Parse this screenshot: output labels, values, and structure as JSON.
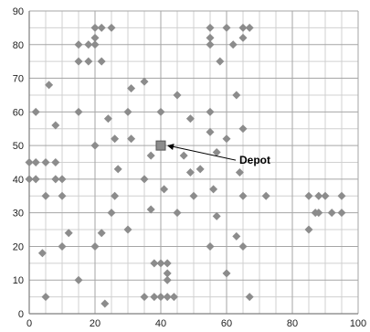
{
  "chart_data": {
    "type": "scatter",
    "title": "",
    "xlabel": "",
    "ylabel": "",
    "xlim": [
      0,
      100
    ],
    "ylim": [
      0,
      90
    ],
    "x_ticks": [
      0,
      20,
      40,
      60,
      80,
      100
    ],
    "y_ticks": [
      0,
      10,
      20,
      30,
      40,
      50,
      60,
      70,
      80,
      90
    ],
    "x_minor_step": 5,
    "y_minor_step": 5,
    "grid": true,
    "legend": false,
    "colors": {
      "marker": "#8c8c8c",
      "major_grid": "#a6a6a6",
      "minor_grid": "#d0d0d0",
      "axis": "#7f7f7f"
    },
    "depot": {
      "x": 40,
      "y": 50,
      "label": "Depot"
    },
    "points": [
      [
        0,
        45
      ],
      [
        0,
        40
      ],
      [
        2,
        45
      ],
      [
        2,
        40
      ],
      [
        2,
        60
      ],
      [
        5,
        45
      ],
      [
        5,
        35
      ],
      [
        6,
        68
      ],
      [
        4,
        18
      ],
      [
        5,
        5
      ],
      [
        8,
        45
      ],
      [
        8,
        56
      ],
      [
        8,
        40
      ],
      [
        10,
        40
      ],
      [
        10,
        35
      ],
      [
        10,
        20
      ],
      [
        12,
        24
      ],
      [
        15,
        80
      ],
      [
        15,
        75
      ],
      [
        15,
        60
      ],
      [
        15,
        10
      ],
      [
        18,
        80
      ],
      [
        18,
        75
      ],
      [
        20,
        85
      ],
      [
        20,
        82
      ],
      [
        20,
        80
      ],
      [
        20,
        50
      ],
      [
        20,
        20
      ],
      [
        22,
        85
      ],
      [
        22,
        75
      ],
      [
        22,
        24
      ],
      [
        23,
        3
      ],
      [
        24,
        58
      ],
      [
        25,
        85
      ],
      [
        25,
        30
      ],
      [
        26,
        52
      ],
      [
        26,
        35
      ],
      [
        27,
        43
      ],
      [
        30,
        60
      ],
      [
        30,
        25
      ],
      [
        31,
        67
      ],
      [
        31,
        52
      ],
      [
        35,
        69
      ],
      [
        35,
        40
      ],
      [
        35,
        5
      ],
      [
        37,
        47
      ],
      [
        37,
        31
      ],
      [
        38,
        15
      ],
      [
        38,
        5
      ],
      [
        40,
        60
      ],
      [
        40,
        15
      ],
      [
        40,
        5
      ],
      [
        41,
        37
      ],
      [
        42,
        15
      ],
      [
        42,
        12
      ],
      [
        42,
        10
      ],
      [
        42,
        5
      ],
      [
        44,
        5
      ],
      [
        45,
        65
      ],
      [
        45,
        30
      ],
      [
        47,
        47
      ],
      [
        49,
        58
      ],
      [
        49,
        42
      ],
      [
        50,
        35
      ],
      [
        52,
        43
      ],
      [
        55,
        85
      ],
      [
        55,
        82
      ],
      [
        55,
        80
      ],
      [
        55,
        60
      ],
      [
        55,
        54
      ],
      [
        55,
        20
      ],
      [
        56,
        37
      ],
      [
        57,
        29
      ],
      [
        57,
        48
      ],
      [
        58,
        75
      ],
      [
        60,
        85
      ],
      [
        60,
        52
      ],
      [
        60,
        12
      ],
      [
        62,
        80
      ],
      [
        63,
        65
      ],
      [
        63,
        23
      ],
      [
        64,
        42
      ],
      [
        65,
        85
      ],
      [
        65,
        82
      ],
      [
        65,
        55
      ],
      [
        65,
        35
      ],
      [
        65,
        20
      ],
      [
        67,
        85
      ],
      [
        67,
        5
      ],
      [
        72,
        35
      ],
      [
        85,
        35
      ],
      [
        85,
        25
      ],
      [
        87,
        30
      ],
      [
        88,
        35
      ],
      [
        88,
        30
      ],
      [
        90,
        35
      ],
      [
        92,
        30
      ],
      [
        95,
        35
      ],
      [
        95,
        30
      ]
    ]
  }
}
